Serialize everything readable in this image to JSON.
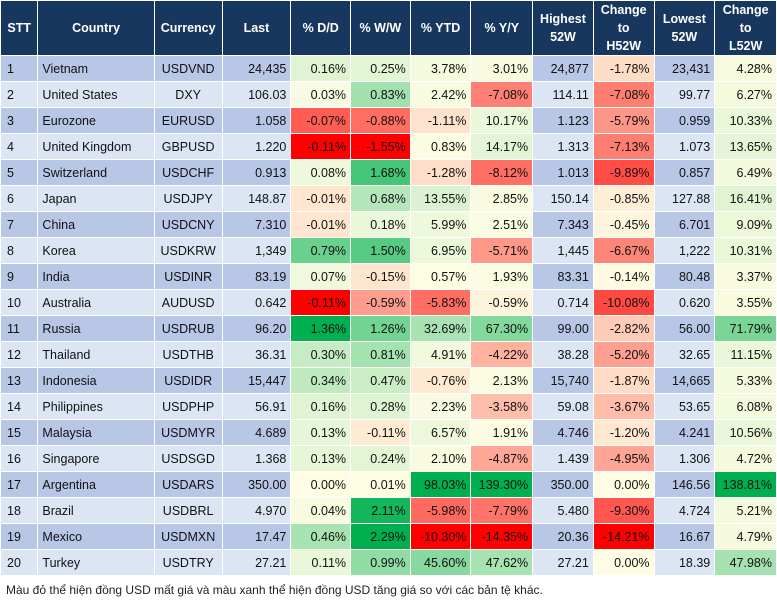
{
  "table": {
    "headers": [
      {
        "key": "stt",
        "label": "STT"
      },
      {
        "key": "country",
        "label": "Country"
      },
      {
        "key": "currency",
        "label": "Currency"
      },
      {
        "key": "last",
        "label": "Last"
      },
      {
        "key": "dd",
        "label": "% D/D"
      },
      {
        "key": "ww",
        "label": "% W/W"
      },
      {
        "key": "ytd",
        "label": "% YTD"
      },
      {
        "key": "yy",
        "label": "% Y/Y"
      },
      {
        "key": "highest",
        "label": "Highest\n52W"
      },
      {
        "key": "h52",
        "label": "Change\nto\nH52W"
      },
      {
        "key": "lowest",
        "label": "Lowest\n52W"
      },
      {
        "key": "l52",
        "label": "Change\nto\nL52W"
      }
    ],
    "rows": [
      {
        "stt": "1",
        "country": "Vietnam",
        "currency": "USDVND",
        "last": "24,435",
        "dd": "0.16%",
        "ww": "0.25%",
        "ytd": "3.78%",
        "yy": "3.01%",
        "highest": "24,877",
        "h52": "-1.78%",
        "lowest": "23,431",
        "l52": "4.28%"
      },
      {
        "stt": "2",
        "country": "United States",
        "currency": "DXY",
        "last": "106.03",
        "dd": "0.03%",
        "ww": "0.83%",
        "ytd": "2.42%",
        "yy": "-7.08%",
        "highest": "114.11",
        "h52": "-7.08%",
        "lowest": "99.77",
        "l52": "6.27%"
      },
      {
        "stt": "3",
        "country": "Eurozone",
        "currency": "EURUSD",
        "last": "1.058",
        "dd": "-0.07%",
        "ww": "-0.88%",
        "ytd": "-1.11%",
        "yy": "10.17%",
        "highest": "1.123",
        "h52": "-5.79%",
        "lowest": "0.959",
        "l52": "10.33%"
      },
      {
        "stt": "4",
        "country": "United Kingdom",
        "currency": "GBPUSD",
        "last": "1.220",
        "dd": "-0.11%",
        "ww": "-1.55%",
        "ytd": "0.83%",
        "yy": "14.17%",
        "highest": "1.313",
        "h52": "-7.13%",
        "lowest": "1.073",
        "l52": "13.65%"
      },
      {
        "stt": "5",
        "country": "Switzerland",
        "currency": "USDCHF",
        "last": "0.913",
        "dd": "0.08%",
        "ww": "1.68%",
        "ytd": "-1.28%",
        "yy": "-8.12%",
        "highest": "1.013",
        "h52": "-9.89%",
        "lowest": "0.857",
        "l52": "6.49%"
      },
      {
        "stt": "6",
        "country": "Japan",
        "currency": "USDJPY",
        "last": "148.87",
        "dd": "-0.01%",
        "ww": "0.68%",
        "ytd": "13.55%",
        "yy": "2.85%",
        "highest": "150.14",
        "h52": "-0.85%",
        "lowest": "127.88",
        "l52": "16.41%"
      },
      {
        "stt": "7",
        "country": "China",
        "currency": "USDCNY",
        "last": "7.310",
        "dd": "-0.01%",
        "ww": "0.18%",
        "ytd": "5.99%",
        "yy": "2.51%",
        "highest": "7.343",
        "h52": "-0.45%",
        "lowest": "6.701",
        "l52": "9.09%"
      },
      {
        "stt": "8",
        "country": "Korea",
        "currency": "USDKRW",
        "last": "1,349",
        "dd": "0.79%",
        "ww": "1.50%",
        "ytd": "6.95%",
        "yy": "-5.71%",
        "highest": "1,445",
        "h52": "-6.67%",
        "lowest": "1,222",
        "l52": "10.31%"
      },
      {
        "stt": "9",
        "country": "India",
        "currency": "USDINR",
        "last": "83.19",
        "dd": "0.07%",
        "ww": "-0.15%",
        "ytd": "0.57%",
        "yy": "1.93%",
        "highest": "83.31",
        "h52": "-0.14%",
        "lowest": "80.48",
        "l52": "3.37%"
      },
      {
        "stt": "10",
        "country": "Australia",
        "currency": "AUDUSD",
        "last": "0.642",
        "dd": "-0.11%",
        "ww": "-0.59%",
        "ytd": "-5.83%",
        "yy": "-0.59%",
        "highest": "0.714",
        "h52": "-10.08%",
        "lowest": "0.620",
        "l52": "3.55%"
      },
      {
        "stt": "11",
        "country": "Russia",
        "currency": "USDRUB",
        "last": "96.20",
        "dd": "1.36%",
        "ww": "1.26%",
        "ytd": "32.69%",
        "yy": "67.30%",
        "highest": "99.00",
        "h52": "-2.82%",
        "lowest": "56.00",
        "l52": "71.79%"
      },
      {
        "stt": "12",
        "country": "Thailand",
        "currency": "USDTHB",
        "last": "36.31",
        "dd": "0.30%",
        "ww": "0.81%",
        "ytd": "4.91%",
        "yy": "-4.22%",
        "highest": "38.28",
        "h52": "-5.20%",
        "lowest": "32.65",
        "l52": "11.15%"
      },
      {
        "stt": "13",
        "country": "Indonesia",
        "currency": "USDIDR",
        "last": "15,447",
        "dd": "0.34%",
        "ww": "0.47%",
        "ytd": "-0.76%",
        "yy": "2.13%",
        "highest": "15,740",
        "h52": "-1.87%",
        "lowest": "14,665",
        "l52": "5.33%"
      },
      {
        "stt": "14",
        "country": "Philippines",
        "currency": "USDPHP",
        "last": "56.91",
        "dd": "0.16%",
        "ww": "0.28%",
        "ytd": "2.23%",
        "yy": "-3.58%",
        "highest": "59.08",
        "h52": "-3.67%",
        "lowest": "53.65",
        "l52": "6.08%"
      },
      {
        "stt": "15",
        "country": "Malaysia",
        "currency": "USDMYR",
        "last": "4.689",
        "dd": "0.13%",
        "ww": "-0.11%",
        "ytd": "6.57%",
        "yy": "1.91%",
        "highest": "4.746",
        "h52": "-1.20%",
        "lowest": "4.241",
        "l52": "10.56%"
      },
      {
        "stt": "16",
        "country": "Singapore",
        "currency": "USDSGD",
        "last": "1.368",
        "dd": "0.13%",
        "ww": "0.24%",
        "ytd": "2.10%",
        "yy": "-4.87%",
        "highest": "1.439",
        "h52": "-4.95%",
        "lowest": "1.306",
        "l52": "4.72%"
      },
      {
        "stt": "17",
        "country": "Argentina",
        "currency": "USDARS",
        "last": "350.00",
        "dd": "0.00%",
        "ww": "0.01%",
        "ytd": "98.03%",
        "yy": "139.30%",
        "highest": "350.00",
        "h52": "0.00%",
        "lowest": "146.56",
        "l52": "138.81%"
      },
      {
        "stt": "18",
        "country": "Brazil",
        "currency": "USDBRL",
        "last": "4.970",
        "dd": "0.04%",
        "ww": "2.11%",
        "ytd": "-5.98%",
        "yy": "-7.79%",
        "highest": "5.480",
        "h52": "-9.30%",
        "lowest": "4.724",
        "l52": "5.21%"
      },
      {
        "stt": "19",
        "country": "Mexico",
        "currency": "USDMXN",
        "last": "17.47",
        "dd": "0.46%",
        "ww": "2.29%",
        "ytd": "-10.30%",
        "yy": "-14.35%",
        "highest": "20.36",
        "h52": "-14.21%",
        "lowest": "16.67",
        "l52": "4.79%"
      },
      {
        "stt": "20",
        "country": "Turkey",
        "currency": "USDTRY",
        "last": "27.21",
        "dd": "0.11%",
        "ww": "0.99%",
        "ytd": "45.60%",
        "yy": "47.62%",
        "highest": "27.21",
        "h52": "0.00%",
        "lowest": "18.39",
        "l52": "47.98%"
      }
    ]
  },
  "heat_columns": [
    "dd",
    "ww",
    "ytd",
    "yy",
    "h52",
    "l52"
  ],
  "colors": {
    "header_bg": "#17375e",
    "header_text": "#ffffff",
    "row_odd": "#b8c7e6",
    "row_even": "#dce5f3",
    "negative_strong": "#ff0000",
    "positive_strong": "#00b050",
    "neutral": "#fefde4"
  },
  "footnote": "Màu đỏ thể hiện đồng USD mất giá và màu xanh thể hiện đồng USD tăng giá so với các bản tệ khác."
}
